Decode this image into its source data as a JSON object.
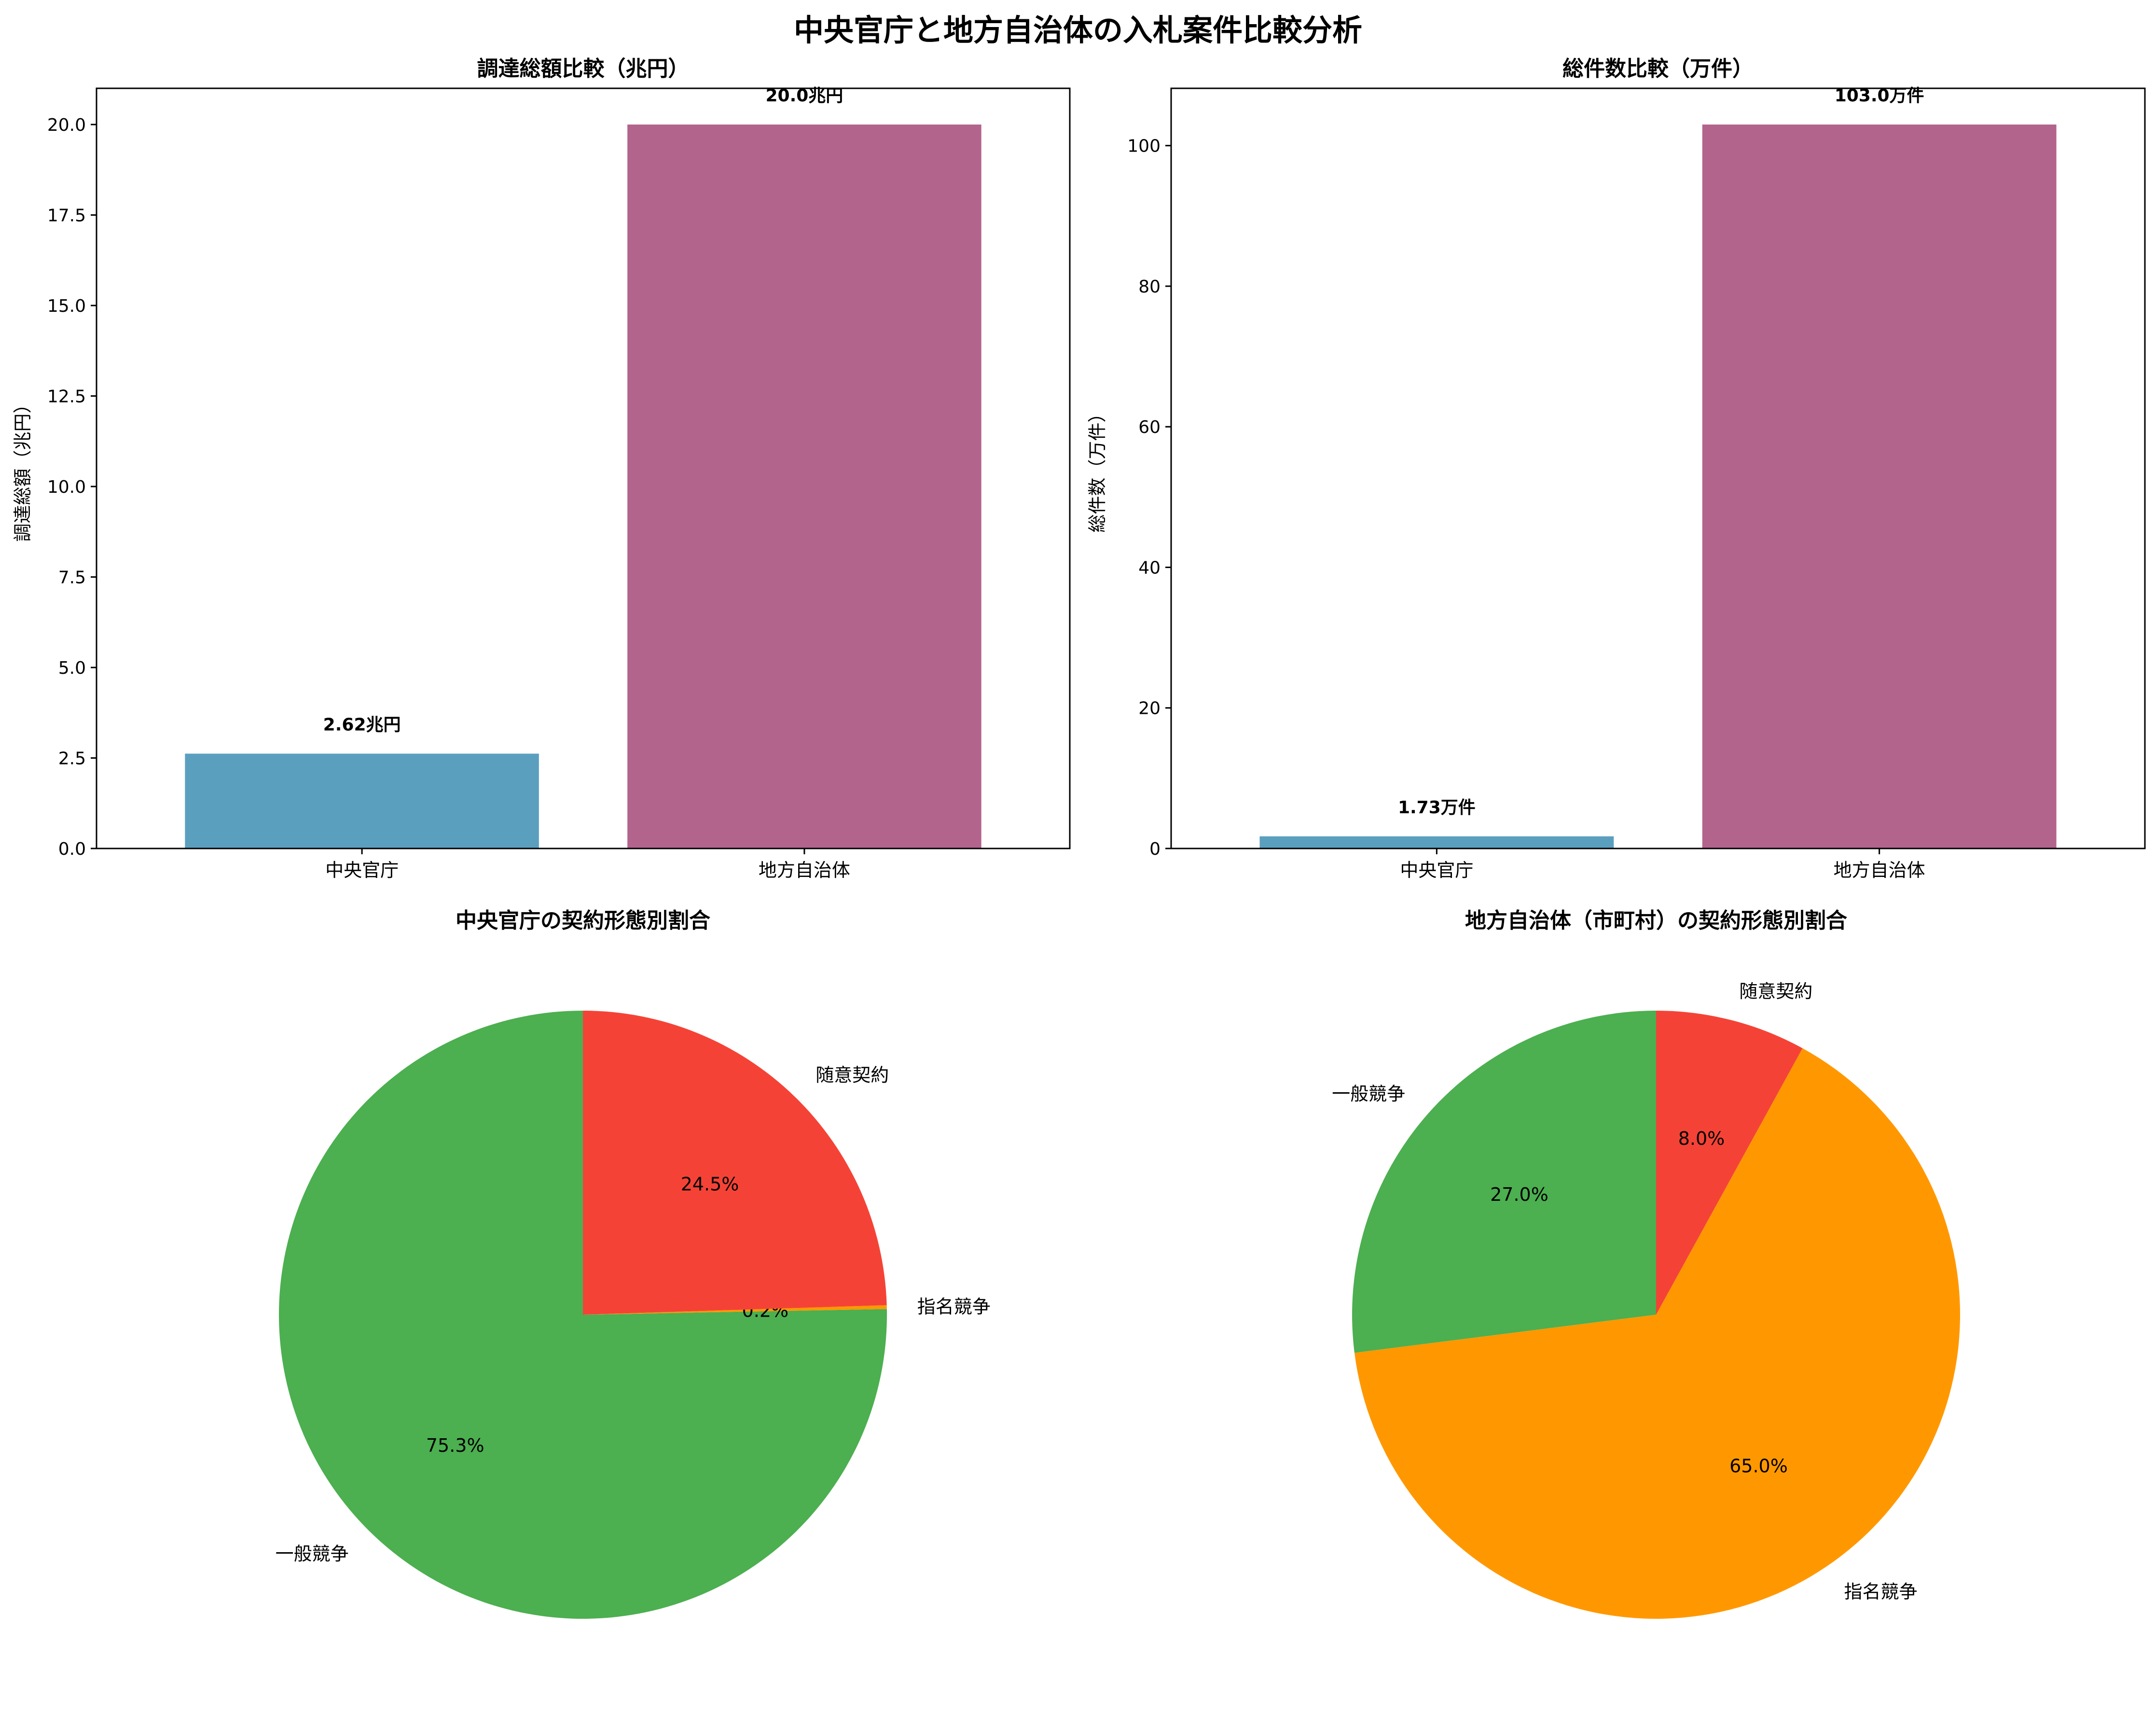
{
  "figure": {
    "suptitle": "中央官庁と地方自治体の入札案件比較分析"
  },
  "chart_data": [
    {
      "type": "bar",
      "title": "調達総額比較（兆円）",
      "xlabel": "",
      "ylabel": "調達総額（兆円）",
      "categories": [
        "中央官庁",
        "地方自治体"
      ],
      "values": [
        2.62,
        20.0
      ],
      "bar_labels": [
        "2.62兆円",
        "20.0兆円"
      ],
      "colors": [
        "#5b9fbf",
        "#b3648c"
      ],
      "ylim": [
        0,
        21
      ],
      "yticks": [
        0.0,
        2.5,
        5.0,
        7.5,
        10.0,
        12.5,
        15.0,
        17.5,
        20.0
      ],
      "ytick_labels": [
        "0.0",
        "2.5",
        "5.0",
        "7.5",
        "10.0",
        "12.5",
        "15.0",
        "17.5",
        "20.0"
      ],
      "grid": false
    },
    {
      "type": "bar",
      "title": "総件数比較（万件）",
      "xlabel": "",
      "ylabel": "総件数（万件）",
      "categories": [
        "中央官庁",
        "地方自治体"
      ],
      "values": [
        1.73,
        103.0
      ],
      "bar_labels": [
        "1.73万件",
        "103.0万件"
      ],
      "colors": [
        "#5b9fbf",
        "#b3648c"
      ],
      "ylim": [
        0,
        108.15
      ],
      "yticks": [
        0,
        20,
        40,
        60,
        80,
        100
      ],
      "ytick_labels": [
        "0",
        "20",
        "40",
        "60",
        "80",
        "100"
      ],
      "grid": false
    },
    {
      "type": "pie",
      "title": "中央官庁の契約形態別割合",
      "labels": [
        "一般競争",
        "指名競争",
        "随意契約"
      ],
      "values": [
        75.3,
        0.2,
        24.5
      ],
      "pct_labels": [
        "75.3%",
        "0.2%",
        "24.5%"
      ],
      "colors": [
        "#4caf50",
        "#ff9800",
        "#f44336"
      ]
    },
    {
      "type": "pie",
      "title": "地方自治体（市町村）の契約形態別割合",
      "labels": [
        "一般競争",
        "指名競争",
        "随意契約"
      ],
      "values": [
        27.0,
        65.0,
        8.0
      ],
      "pct_labels": [
        "27.0%",
        "65.0%",
        "8.0%"
      ],
      "colors": [
        "#4caf50",
        "#ff9800",
        "#f44336"
      ]
    }
  ]
}
